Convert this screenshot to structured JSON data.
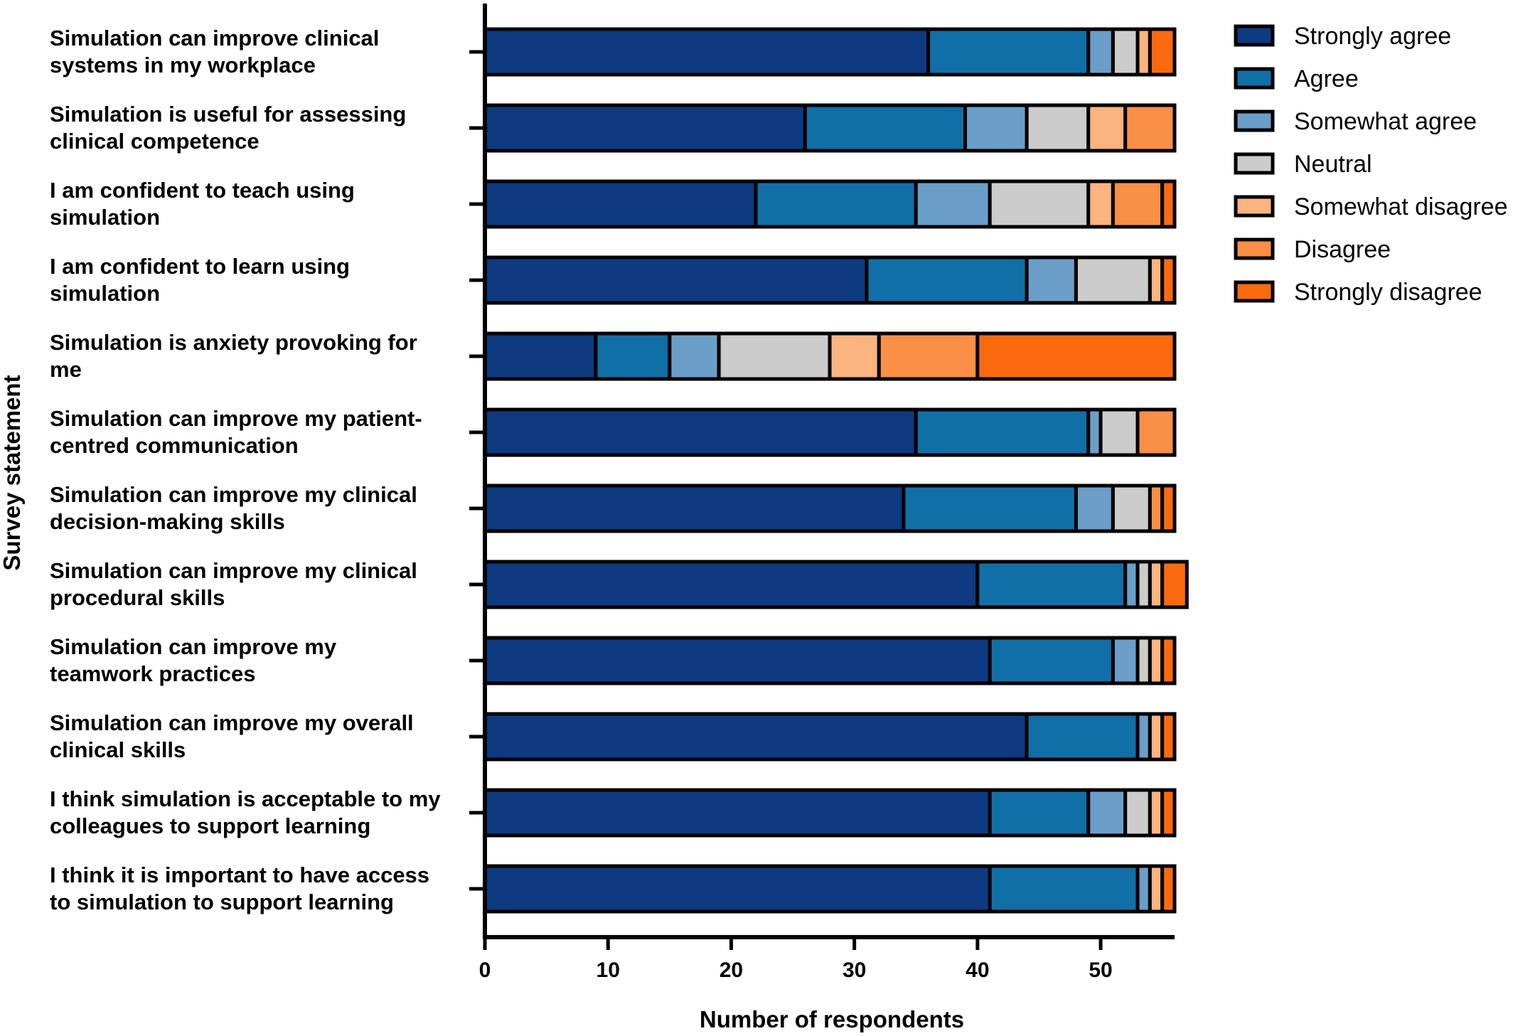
{
  "chart_data": {
    "type": "bar",
    "orientation": "horizontal",
    "stacked": true,
    "xlabel": "Number of respondents",
    "ylabel": "Survey statement",
    "xlim": [
      0,
      56
    ],
    "xticks": [
      0,
      10,
      20,
      30,
      40,
      50
    ],
    "grid": false,
    "legend_position": "top-right",
    "categories": [
      [
        "Simulation can improve clinical",
        "systems in my workplace"
      ],
      [
        "Simulation is useful for assessing",
        "clinical competence"
      ],
      [
        "I am confident to teach using",
        "simulation"
      ],
      [
        "I am confident to learn using",
        "simulation"
      ],
      [
        "Simulation is anxiety provoking for",
        "me"
      ],
      [
        "Simulation can improve my patient-",
        "centred communication"
      ],
      [
        "Simulation can improve my clinical",
        "decision-making skills"
      ],
      [
        "Simulation can improve my clinical",
        "procedural skills"
      ],
      [
        "Simulation can improve my",
        "teamwork practices"
      ],
      [
        "Simulation can improve my overall",
        "clinical skills"
      ],
      [
        "I think simulation is acceptable to my",
        "colleagues to support learning"
      ],
      [
        "I think it is important to have access",
        "to simulation to support learning"
      ]
    ],
    "series": [
      {
        "name": "Strongly agree",
        "color": "#0d3a80",
        "values": [
          36,
          26,
          22,
          31,
          9,
          35,
          34,
          40,
          41,
          44,
          41,
          41
        ]
      },
      {
        "name": "Agree",
        "color": "#116fa7",
        "values": [
          13,
          13,
          13,
          13,
          6,
          14,
          14,
          12,
          10,
          9,
          8,
          12
        ]
      },
      {
        "name": "Somewhat agree",
        "color": "#6b9ec9",
        "values": [
          2,
          5,
          6,
          4,
          4,
          1,
          3,
          1,
          2,
          1,
          3,
          1
        ]
      },
      {
        "name": "Neutral",
        "color": "#cccccc",
        "values": [
          2,
          5,
          8,
          6,
          9,
          3,
          3,
          1,
          1,
          0,
          2,
          0
        ]
      },
      {
        "name": "Somewhat disagree",
        "color": "#fbb37f",
        "values": [
          1,
          3,
          2,
          1,
          4,
          0,
          0,
          1,
          1,
          1,
          1,
          1
        ]
      },
      {
        "name": "Disagree",
        "color": "#fa8f46",
        "values": [
          0,
          4,
          4,
          0,
          8,
          3,
          1,
          0,
          0,
          0,
          0,
          0
        ]
      },
      {
        "name": "Strongly disagree",
        "color": "#fb6a0e",
        "values": [
          2,
          0,
          1,
          1,
          16,
          0,
          1,
          2,
          1,
          1,
          1,
          1
        ]
      }
    ]
  }
}
